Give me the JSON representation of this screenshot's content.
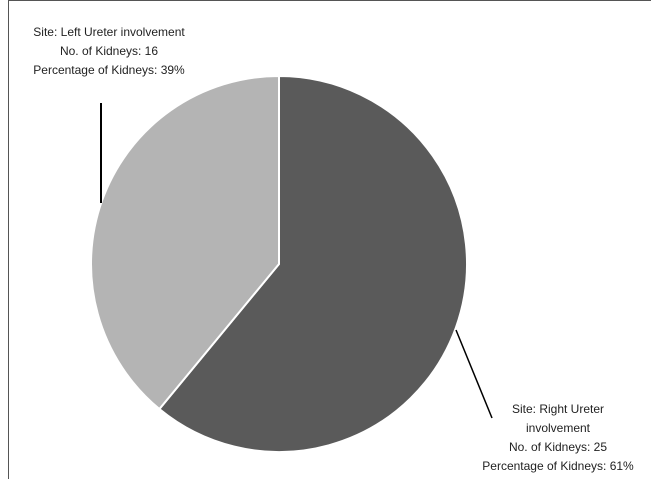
{
  "chart_data": {
    "type": "pie",
    "title": "",
    "slices": [
      {
        "site_label": "Site: Right Ureter involvement",
        "count_label": "No. of Kidneys: 25",
        "percent_label": "Percentage of Kidneys: 61%",
        "value": 25,
        "percent": 61,
        "color": "#5a5a5a"
      },
      {
        "site_label": "Site: Left Ureter involvement",
        "count_label": "No. of Kidneys: 16",
        "percent_label": "Percentage of Kidneys: 39%",
        "value": 16,
        "percent": 39,
        "color": "#b4b4b4"
      }
    ],
    "legend": "none"
  }
}
